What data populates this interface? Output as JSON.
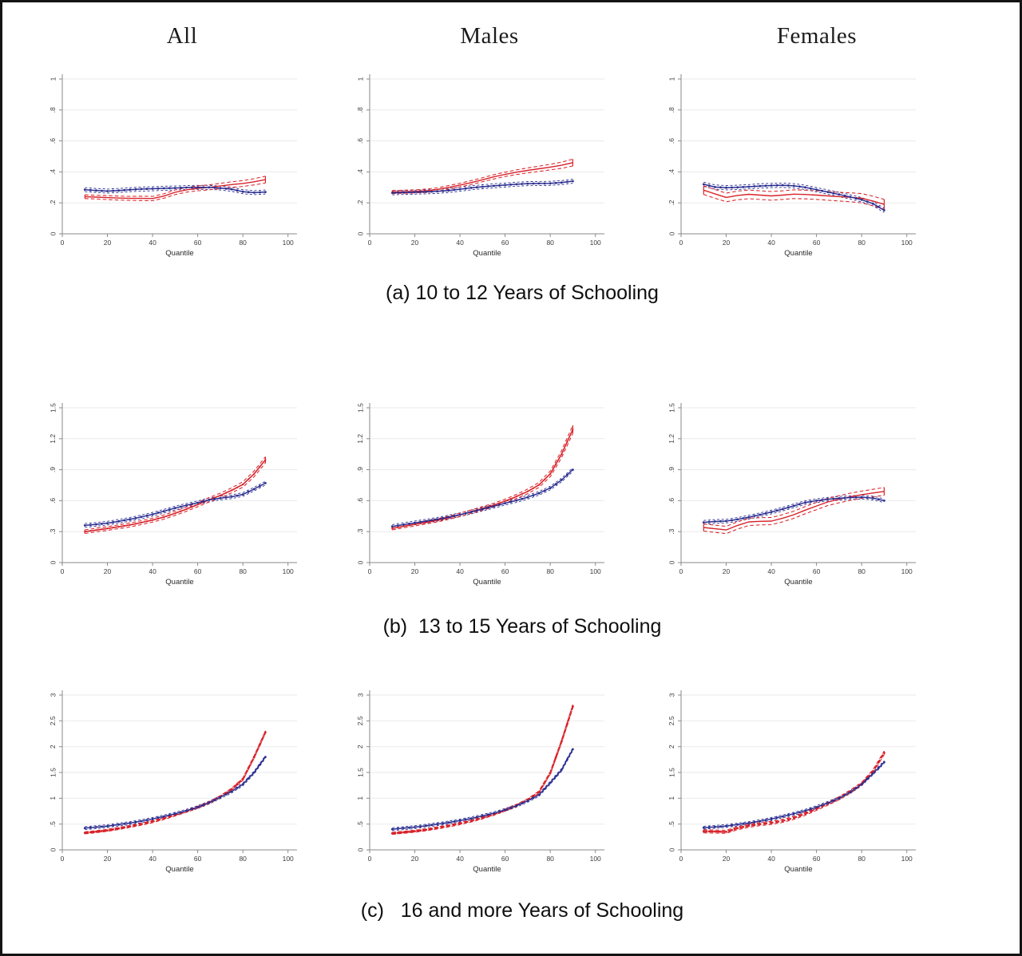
{
  "figure": {
    "column_titles": [
      "All",
      "Males",
      "Females"
    ],
    "captions": [
      "(a) 10 to 12 Years of Schooling",
      "(b)  13 to 15 Years of Schooling",
      "(c)   16 and more Years of Schooling"
    ],
    "xlabel": "Quantile",
    "colors": {
      "blue": "#2b2f90",
      "red": "#d8232a",
      "grid": "#eaeaea",
      "axis": "#8a8a8a",
      "tick_text": "#3d3d3d"
    }
  },
  "chart_data": [
    {
      "type": "line",
      "panel": "a",
      "group": "All",
      "xlabel": "Quantile",
      "x": [
        10,
        15,
        20,
        25,
        30,
        35,
        40,
        45,
        50,
        55,
        60,
        65,
        70,
        75,
        80,
        85,
        90
      ],
      "xticks": [
        0,
        20,
        40,
        60,
        80,
        100
      ],
      "ymax": 1.0,
      "yticks": [
        {
          "v": 0,
          "label": "0"
        },
        {
          "v": 0.2,
          "label": ".2"
        },
        {
          "v": 0.4,
          "label": ".4"
        },
        {
          "v": 0.6,
          "label": ".6"
        },
        {
          "v": 0.8,
          "label": ".8"
        },
        {
          "v": 1,
          "label": "1"
        }
      ],
      "blue": [
        0.285,
        0.28,
        0.276,
        0.28,
        0.285,
        0.289,
        0.291,
        0.294,
        0.296,
        0.299,
        0.3,
        0.3,
        0.296,
        0.288,
        0.272,
        0.266,
        0.27
      ],
      "blue_delta": 0.013,
      "red": [
        0.24,
        0.237,
        0.234,
        0.231,
        0.229,
        0.229,
        0.228,
        0.244,
        0.268,
        0.284,
        0.294,
        0.3,
        0.309,
        0.318,
        0.325,
        0.336,
        0.35
      ],
      "red_delta": [
        0.012,
        0.012,
        0.013,
        0.013,
        0.013,
        0.014,
        0.014,
        0.014,
        0.015,
        0.015,
        0.016,
        0.016,
        0.017,
        0.018,
        0.019,
        0.02,
        0.022
      ],
      "red_style": "solid"
    },
    {
      "type": "line",
      "panel": "a",
      "group": "Males",
      "xlabel": "Quantile",
      "x": [
        10,
        15,
        20,
        25,
        30,
        35,
        40,
        45,
        50,
        55,
        60,
        65,
        70,
        75,
        80,
        85,
        90
      ],
      "xticks": [
        0,
        20,
        40,
        60,
        80,
        100
      ],
      "ymax": 1.0,
      "yticks": [
        {
          "v": 0,
          "label": "0"
        },
        {
          "v": 0.2,
          "label": ".2"
        },
        {
          "v": 0.4,
          "label": ".4"
        },
        {
          "v": 0.6,
          "label": ".6"
        },
        {
          "v": 0.8,
          "label": ".8"
        },
        {
          "v": 1,
          "label": "1"
        }
      ],
      "blue": [
        0.265,
        0.267,
        0.269,
        0.271,
        0.274,
        0.28,
        0.288,
        0.297,
        0.304,
        0.31,
        0.315,
        0.32,
        0.324,
        0.325,
        0.326,
        0.331,
        0.34
      ],
      "blue_delta": 0.013,
      "red": [
        0.27,
        0.272,
        0.274,
        0.278,
        0.286,
        0.3,
        0.315,
        0.331,
        0.349,
        0.368,
        0.384,
        0.398,
        0.41,
        0.42,
        0.431,
        0.443,
        0.46
      ],
      "red_delta": [
        0.01,
        0.01,
        0.01,
        0.011,
        0.011,
        0.012,
        0.012,
        0.013,
        0.013,
        0.014,
        0.014,
        0.015,
        0.016,
        0.017,
        0.018,
        0.02,
        0.022
      ],
      "red_style": "solid"
    },
    {
      "type": "line",
      "panel": "a",
      "group": "Females",
      "xlabel": "Quantile",
      "x": [
        10,
        15,
        20,
        25,
        30,
        35,
        40,
        45,
        50,
        55,
        60,
        65,
        70,
        75,
        80,
        85,
        90
      ],
      "xticks": [
        0,
        20,
        40,
        60,
        80,
        100
      ],
      "ymax": 1.0,
      "yticks": [
        {
          "v": 0,
          "label": "0"
        },
        {
          "v": 0.2,
          "label": ".2"
        },
        {
          "v": 0.4,
          "label": ".4"
        },
        {
          "v": 0.6,
          "label": ".6"
        },
        {
          "v": 0.8,
          "label": ".8"
        },
        {
          "v": 1,
          "label": "1"
        }
      ],
      "blue": [
        0.32,
        0.302,
        0.298,
        0.3,
        0.304,
        0.309,
        0.312,
        0.314,
        0.31,
        0.3,
        0.285,
        0.27,
        0.254,
        0.238,
        0.22,
        0.195,
        0.152
      ],
      "blue_delta": 0.014,
      "red": [
        0.282,
        0.258,
        0.235,
        0.248,
        0.255,
        0.25,
        0.245,
        0.25,
        0.256,
        0.254,
        0.25,
        0.245,
        0.24,
        0.236,
        0.23,
        0.212,
        0.19
      ],
      "red_delta": [
        0.028,
        0.028,
        0.028,
        0.028,
        0.028,
        0.028,
        0.028,
        0.028,
        0.028,
        0.028,
        0.028,
        0.028,
        0.028,
        0.029,
        0.03,
        0.031,
        0.032
      ],
      "red_style": "solid"
    },
    {
      "type": "line",
      "panel": "b",
      "group": "All",
      "xlabel": "Quantile",
      "x": [
        10,
        15,
        20,
        25,
        30,
        35,
        40,
        45,
        50,
        55,
        60,
        65,
        70,
        75,
        80,
        85,
        90
      ],
      "xticks": [
        0,
        20,
        40,
        60,
        80,
        100
      ],
      "ymax": 1.5,
      "yticks": [
        {
          "v": 0,
          "label": "0"
        },
        {
          "v": 0.3,
          "label": ".3"
        },
        {
          "v": 0.6,
          "label": ".6"
        },
        {
          "v": 0.9,
          "label": ".9"
        },
        {
          "v": 1.2,
          "label": "1.2"
        },
        {
          "v": 1.5,
          "label": "1.5"
        }
      ],
      "blue": [
        0.36,
        0.37,
        0.382,
        0.4,
        0.42,
        0.442,
        0.468,
        0.498,
        0.528,
        0.556,
        0.58,
        0.608,
        0.625,
        0.638,
        0.66,
        0.712,
        0.77
      ],
      "blue_delta": 0.018,
      "red": [
        0.3,
        0.315,
        0.33,
        0.347,
        0.365,
        0.387,
        0.412,
        0.441,
        0.477,
        0.518,
        0.562,
        0.608,
        0.65,
        0.7,
        0.757,
        0.86,
        0.995
      ],
      "red_delta": [
        0.018,
        0.018,
        0.018,
        0.018,
        0.019,
        0.019,
        0.019,
        0.02,
        0.02,
        0.021,
        0.021,
        0.022,
        0.023,
        0.024,
        0.026,
        0.028,
        0.03
      ],
      "red_style": "beaded"
    },
    {
      "type": "line",
      "panel": "b",
      "group": "Males",
      "xlabel": "Quantile",
      "x": [
        10,
        15,
        20,
        25,
        30,
        35,
        40,
        45,
        50,
        55,
        60,
        65,
        70,
        75,
        80,
        85,
        90
      ],
      "xticks": [
        0,
        20,
        40,
        60,
        80,
        100
      ],
      "ymax": 1.5,
      "yticks": [
        {
          "v": 0,
          "label": "0"
        },
        {
          "v": 0.3,
          "label": ".3"
        },
        {
          "v": 0.6,
          "label": ".6"
        },
        {
          "v": 0.9,
          "label": ".9"
        },
        {
          "v": 1.2,
          "label": "1.2"
        },
        {
          "v": 1.5,
          "label": "1.5"
        }
      ],
      "blue": [
        0.35,
        0.368,
        0.385,
        0.402,
        0.42,
        0.441,
        0.464,
        0.49,
        0.518,
        0.546,
        0.575,
        0.602,
        0.633,
        0.672,
        0.722,
        0.8,
        0.9
      ],
      "blue_delta": 0.018,
      "red": [
        0.332,
        0.352,
        0.37,
        0.39,
        0.41,
        0.434,
        0.462,
        0.494,
        0.525,
        0.557,
        0.595,
        0.64,
        0.69,
        0.752,
        0.86,
        1.05,
        1.29
      ],
      "red_delta": [
        0.015,
        0.015,
        0.015,
        0.016,
        0.016,
        0.016,
        0.017,
        0.017,
        0.018,
        0.018,
        0.019,
        0.02,
        0.022,
        0.024,
        0.028,
        0.034,
        0.04
      ],
      "red_style": "beaded"
    },
    {
      "type": "line",
      "panel": "b",
      "group": "Females",
      "xlabel": "Quantile",
      "x": [
        10,
        15,
        20,
        25,
        30,
        35,
        40,
        45,
        50,
        55,
        60,
        65,
        70,
        75,
        80,
        85,
        90
      ],
      "xticks": [
        0,
        20,
        40,
        60,
        80,
        100
      ],
      "ymax": 1.5,
      "yticks": [
        {
          "v": 0,
          "label": "0"
        },
        {
          "v": 0.3,
          "label": ".3"
        },
        {
          "v": 0.6,
          "label": ".6"
        },
        {
          "v": 0.9,
          "label": ".9"
        },
        {
          "v": 1.2,
          "label": "1.2"
        },
        {
          "v": 1.5,
          "label": "1.5"
        }
      ],
      "blue": [
        0.39,
        0.398,
        0.402,
        0.418,
        0.44,
        0.464,
        0.49,
        0.518,
        0.55,
        0.582,
        0.6,
        0.614,
        0.623,
        0.63,
        0.634,
        0.625,
        0.6
      ],
      "blue_delta": 0.018,
      "red": [
        0.34,
        0.328,
        0.316,
        0.36,
        0.394,
        0.4,
        0.402,
        0.43,
        0.464,
        0.508,
        0.548,
        0.588,
        0.614,
        0.638,
        0.658,
        0.674,
        0.69
      ],
      "red_delta": [
        0.035,
        0.035,
        0.035,
        0.035,
        0.035,
        0.035,
        0.035,
        0.035,
        0.035,
        0.035,
        0.035,
        0.035,
        0.035,
        0.035,
        0.035,
        0.036,
        0.038
      ],
      "red_style": "solid"
    },
    {
      "type": "line",
      "panel": "c",
      "group": "All",
      "xlabel": "Quantile",
      "x": [
        10,
        15,
        20,
        25,
        30,
        35,
        40,
        45,
        50,
        55,
        60,
        65,
        70,
        75,
        80,
        85,
        90
      ],
      "xticks": [
        0,
        20,
        40,
        60,
        80,
        100
      ],
      "ymax": 3.0,
      "yticks": [
        {
          "v": 0,
          "label": "0"
        },
        {
          "v": 0.5,
          "label": ".5"
        },
        {
          "v": 1,
          "label": "1"
        },
        {
          "v": 1.5,
          "label": "1.5"
        },
        {
          "v": 2,
          "label": "2"
        },
        {
          "v": 2.5,
          "label": "2.5"
        },
        {
          "v": 3,
          "label": "3"
        }
      ],
      "blue": [
        0.42,
        0.44,
        0.46,
        0.49,
        0.52,
        0.556,
        0.6,
        0.648,
        0.7,
        0.758,
        0.828,
        0.915,
        1.02,
        1.13,
        1.27,
        1.5,
        1.8
      ],
      "blue_delta": 0.028,
      "red": [
        0.33,
        0.352,
        0.378,
        0.415,
        0.455,
        0.498,
        0.548,
        0.608,
        0.676,
        0.748,
        0.826,
        0.915,
        1.03,
        1.175,
        1.37,
        1.8,
        2.28
      ],
      "red_delta": [
        0.02,
        0.02,
        0.02,
        0.02,
        0.02,
        0.02,
        0.02,
        0.02,
        0.02,
        0.02,
        0.02,
        0.02,
        0.02,
        0.02,
        0.022,
        0.024,
        0.026
      ],
      "red_style": "thick"
    },
    {
      "type": "line",
      "panel": "c",
      "group": "Males",
      "xlabel": "Quantile",
      "x": [
        10,
        15,
        20,
        25,
        30,
        35,
        40,
        45,
        50,
        55,
        60,
        65,
        70,
        75,
        80,
        85,
        90
      ],
      "xticks": [
        0,
        20,
        40,
        60,
        80,
        100
      ],
      "ymax": 3.0,
      "yticks": [
        {
          "v": 0,
          "label": "0"
        },
        {
          "v": 0.5,
          "label": ".5"
        },
        {
          "v": 1,
          "label": "1"
        },
        {
          "v": 1.5,
          "label": "1.5"
        },
        {
          "v": 2,
          "label": "2"
        },
        {
          "v": 2.5,
          "label": "2.5"
        },
        {
          "v": 3,
          "label": "3"
        }
      ],
      "blue": [
        0.4,
        0.42,
        0.44,
        0.468,
        0.498,
        0.53,
        0.568,
        0.61,
        0.658,
        0.71,
        0.775,
        0.855,
        0.95,
        1.065,
        1.3,
        1.55,
        1.95
      ],
      "blue_delta": 0.028,
      "red": [
        0.32,
        0.34,
        0.362,
        0.39,
        0.425,
        0.465,
        0.51,
        0.56,
        0.62,
        0.69,
        0.77,
        0.862,
        0.97,
        1.12,
        1.49,
        2.1,
        2.78
      ],
      "red_delta": [
        0.02,
        0.02,
        0.02,
        0.02,
        0.02,
        0.02,
        0.02,
        0.02,
        0.02,
        0.02,
        0.02,
        0.02,
        0.02,
        0.022,
        0.024,
        0.028,
        0.032
      ],
      "red_style": "thick"
    },
    {
      "type": "line",
      "panel": "c",
      "group": "Females",
      "xlabel": "Quantile",
      "x": [
        10,
        15,
        20,
        25,
        30,
        35,
        40,
        45,
        50,
        55,
        60,
        65,
        70,
        75,
        80,
        85,
        90
      ],
      "xticks": [
        0,
        20,
        40,
        60,
        80,
        100
      ],
      "ymax": 3.0,
      "yticks": [
        {
          "v": 0,
          "label": "0"
        },
        {
          "v": 0.5,
          "label": ".5"
        },
        {
          "v": 1,
          "label": "1"
        },
        {
          "v": 1.5,
          "label": "1.5"
        },
        {
          "v": 2,
          "label": "2"
        },
        {
          "v": 2.5,
          "label": "2.5"
        },
        {
          "v": 3,
          "label": "3"
        }
      ],
      "blue": [
        0.43,
        0.445,
        0.462,
        0.49,
        0.52,
        0.556,
        0.6,
        0.648,
        0.7,
        0.758,
        0.828,
        0.91,
        1.0,
        1.12,
        1.27,
        1.48,
        1.7
      ],
      "blue_delta": 0.028,
      "red": [
        0.36,
        0.355,
        0.35,
        0.42,
        0.468,
        0.5,
        0.524,
        0.562,
        0.62,
        0.7,
        0.795,
        0.895,
        1.0,
        1.13,
        1.28,
        1.52,
        1.88
      ],
      "red_delta": [
        0.03,
        0.03,
        0.03,
        0.03,
        0.03,
        0.03,
        0.03,
        0.03,
        0.03,
        0.03,
        0.03,
        0.03,
        0.03,
        0.03,
        0.03,
        0.032,
        0.034
      ],
      "red_style": "thick"
    }
  ]
}
